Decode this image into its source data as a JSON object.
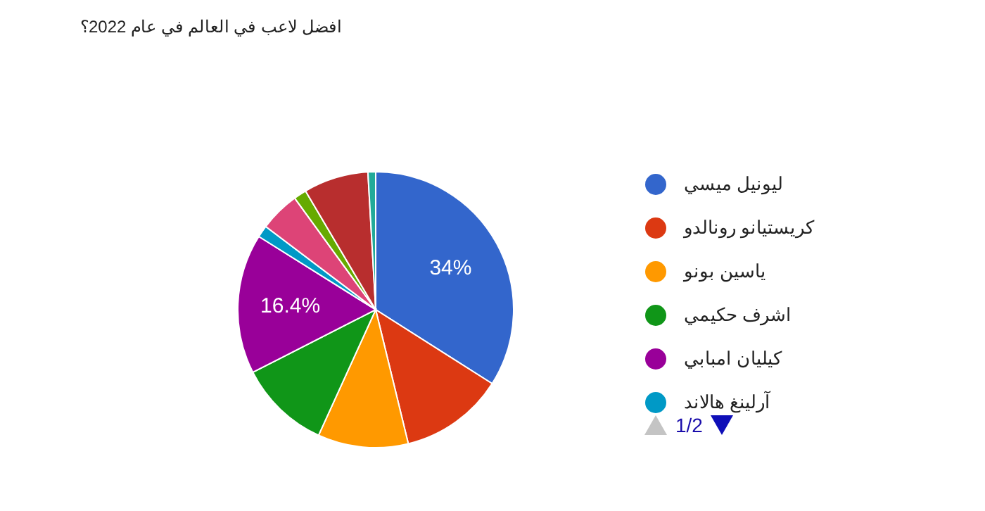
{
  "chart_data": {
    "type": "pie",
    "title": "افضل لاعب في العالم في عام 2022؟",
    "categories": [
      "ليونيل ميسي",
      "كريستيانو رونالدو",
      "ياسين بونو",
      "اشرف حكيمي",
      "كيليان امبابي",
      "آرلينغ هالاند",
      null,
      null,
      null,
      null
    ],
    "values": [
      34,
      12.2,
      10.6,
      10.7,
      16.4,
      1.4,
      4.7,
      1.5,
      7.6,
      0.9
    ],
    "colors": [
      "#3366cc",
      "#dc3912",
      "#ff9900",
      "#109618",
      "#990099",
      "#0099c6",
      "#dd4477",
      "#66aa00",
      "#b82e2e",
      "#22aa99"
    ],
    "value_labels": [
      "34%",
      null,
      null,
      null,
      "16.4%",
      null,
      null,
      null,
      null,
      null
    ],
    "legend": "right",
    "annotations": [
      "1/2"
    ]
  }
}
